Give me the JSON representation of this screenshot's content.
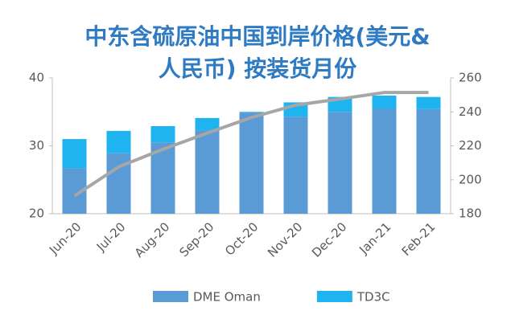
{
  "chart_data": {
    "type": "bar",
    "title": "中东含硫原油中国到岸价格(美元&人民币) 按装货月份",
    "categories": [
      "Jun-20",
      "Jul-20",
      "Aug-20",
      "Sep-20",
      "Oct-20",
      "Nov-20",
      "Dec-20",
      "Jan-21",
      "Feb-21"
    ],
    "stacked": true,
    "series": [
      {
        "name": "DME Oman",
        "color": "#5b9bd5",
        "values": [
          26.7,
          28.9,
          30.5,
          32.3,
          34.9,
          34.3,
          35.0,
          35.5,
          35.4
        ]
      },
      {
        "name": "TD3C",
        "color": "#1fb4ef",
        "values": [
          4.3,
          3.3,
          2.4,
          1.8,
          0.1,
          2.1,
          2.2,
          1.9,
          1.8
        ]
      },
      {
        "type": "line",
        "axis": "y2",
        "color": "#a6a6a6",
        "values": [
          190.5,
          207.6,
          218,
          227.5,
          236.7,
          244,
          247.6,
          251.4,
          251.4
        ]
      }
    ],
    "ylim": [
      20,
      40
    ],
    "yticks": [
      20,
      30,
      40
    ],
    "y2lim": [
      180,
      260
    ],
    "y2ticks": [
      180,
      200,
      220,
      240,
      260
    ]
  }
}
